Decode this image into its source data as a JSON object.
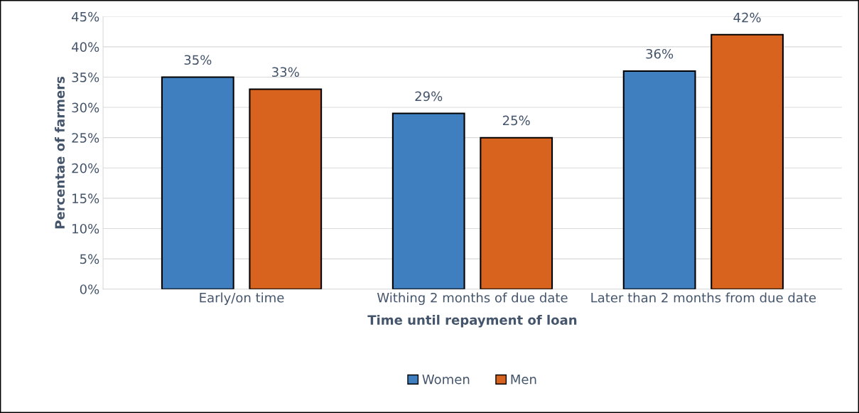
{
  "chart_data": {
    "type": "bar",
    "xlabel": "Time until repayment of loan",
    "ylabel": "Percentae of farmers",
    "categories": [
      "Early/on time",
      "Withing 2 months of due date",
      "Later than 2 months from due date"
    ],
    "series": [
      {
        "name": "Women",
        "color": "#3f7fbf",
        "values": [
          35,
          29,
          36
        ],
        "value_labels": [
          "35%",
          "29%",
          "36%"
        ]
      },
      {
        "name": "Men",
        "color": "#d8631f",
        "values": [
          33,
          25,
          42
        ],
        "value_labels": [
          "33%",
          "25%",
          "42%"
        ]
      }
    ],
    "ylim": [
      0,
      45
    ],
    "yticks": [
      {
        "value": 0,
        "label": "0%"
      },
      {
        "value": 5,
        "label": "5%"
      },
      {
        "value": 10,
        "label": "10%"
      },
      {
        "value": 15,
        "label": "15%"
      },
      {
        "value": 20,
        "label": "20%"
      },
      {
        "value": 25,
        "label": "25%"
      },
      {
        "value": 30,
        "label": "30%"
      },
      {
        "value": 35,
        "label": "35%"
      },
      {
        "value": 40,
        "label": "40%"
      },
      {
        "value": 45,
        "label": "45%"
      }
    ],
    "grid": "y",
    "legend": "bottom"
  }
}
